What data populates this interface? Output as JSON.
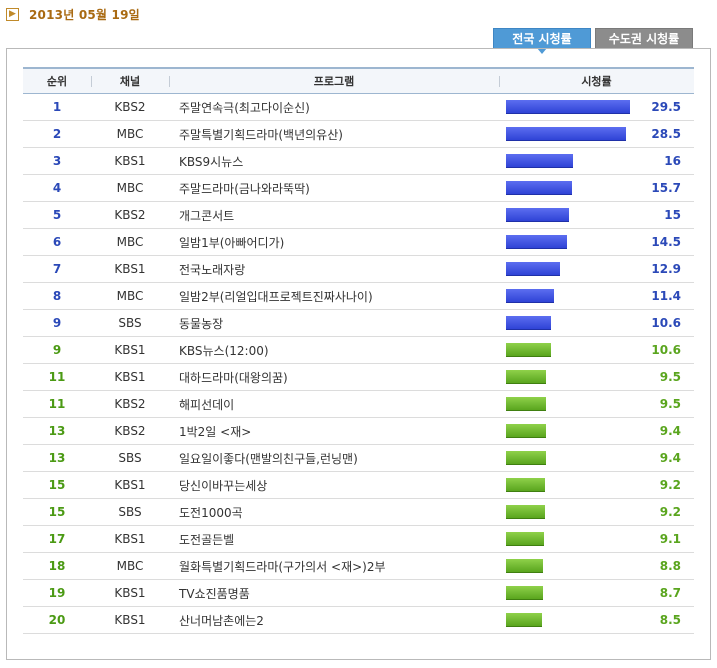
{
  "header": {
    "date_icon": "chevron-right-icon",
    "date": "2013년 05월 19일"
  },
  "tabs": [
    {
      "label": "전국 시청률",
      "active": true
    },
    {
      "label": "수도권 시청률",
      "active": false
    }
  ],
  "table": {
    "columns": [
      "순위",
      "채널",
      "프로그램",
      "시청률"
    ],
    "max_rating": 29.5,
    "rows": [
      {
        "rank": "1",
        "channel": "KBS2",
        "program": "주말연속극(최고다이순신)",
        "rating": "29.5",
        "color": "blue"
      },
      {
        "rank": "2",
        "channel": "MBC",
        "program": "주말특별기획드라마(백년의유산)",
        "rating": "28.5",
        "color": "blue"
      },
      {
        "rank": "3",
        "channel": "KBS1",
        "program": "KBS9시뉴스",
        "rating": "16",
        "color": "blue"
      },
      {
        "rank": "4",
        "channel": "MBC",
        "program": "주말드라마(금나와라뚝딱)",
        "rating": "15.7",
        "color": "blue"
      },
      {
        "rank": "5",
        "channel": "KBS2",
        "program": "개그콘서트",
        "rating": "15",
        "color": "blue"
      },
      {
        "rank": "6",
        "channel": "MBC",
        "program": "일밤1부(아빠어디가)",
        "rating": "14.5",
        "color": "blue"
      },
      {
        "rank": "7",
        "channel": "KBS1",
        "program": "전국노래자랑",
        "rating": "12.9",
        "color": "blue"
      },
      {
        "rank": "8",
        "channel": "MBC",
        "program": "일밤2부(리얼입대프로젝트진짜사나이)",
        "rating": "11.4",
        "color": "blue"
      },
      {
        "rank": "9",
        "channel": "SBS",
        "program": "동물농장",
        "rating": "10.6",
        "color": "blue"
      },
      {
        "rank": "9",
        "channel": "KBS1",
        "program": "KBS뉴스(12:00)",
        "rating": "10.6",
        "color": "green"
      },
      {
        "rank": "11",
        "channel": "KBS1",
        "program": "대하드라마(대왕의꿈)",
        "rating": "9.5",
        "color": "green"
      },
      {
        "rank": "11",
        "channel": "KBS2",
        "program": "해피선데이",
        "rating": "9.5",
        "color": "green"
      },
      {
        "rank": "13",
        "channel": "KBS2",
        "program": "1박2일 <재>",
        "rating": "9.4",
        "color": "green"
      },
      {
        "rank": "13",
        "channel": "SBS",
        "program": "일요일이좋다(맨발의친구들,런닝맨)",
        "rating": "9.4",
        "color": "green"
      },
      {
        "rank": "15",
        "channel": "KBS1",
        "program": "당신이바꾸는세상",
        "rating": "9.2",
        "color": "green"
      },
      {
        "rank": "15",
        "channel": "SBS",
        "program": "도전1000곡",
        "rating": "9.2",
        "color": "green"
      },
      {
        "rank": "17",
        "channel": "KBS1",
        "program": "도전골든벨",
        "rating": "9.1",
        "color": "green"
      },
      {
        "rank": "18",
        "channel": "MBC",
        "program": "월화특별기획드라마(구가의서 <재>)2부",
        "rating": "8.8",
        "color": "green"
      },
      {
        "rank": "19",
        "channel": "KBS1",
        "program": "TV쇼진품명품",
        "rating": "8.7",
        "color": "green"
      },
      {
        "rank": "20",
        "channel": "KBS1",
        "program": "산너머남촌에는2",
        "rating": "8.5",
        "color": "green"
      }
    ]
  }
}
